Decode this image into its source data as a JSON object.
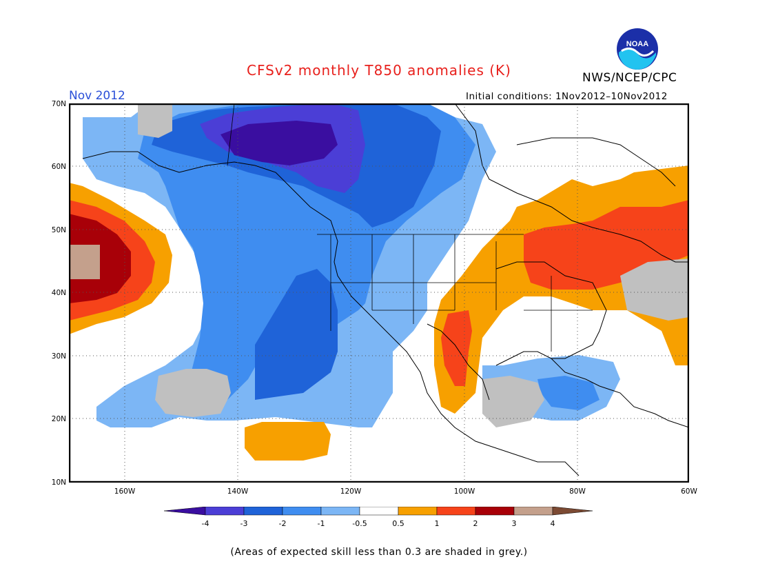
{
  "header": {
    "title": "CFSv2 monthly T850 anomalies (K)",
    "agency": "NWS/NCEP/CPC",
    "logo_text": "NOAA",
    "valid_month": "Nov 2012",
    "initial_conditions": "Initial conditions: 1Nov2012–10Nov2012"
  },
  "map": {
    "lat_labels": [
      "70N",
      "60N",
      "50N",
      "40N",
      "30N",
      "20N",
      "10N"
    ],
    "lon_labels": [
      "160W",
      "140W",
      "120W",
      "100W",
      "80W",
      "60W"
    ],
    "lat_range": [
      10,
      70
    ],
    "lon_range": [
      -171,
      -60
    ]
  },
  "legend": {
    "tick_labels": [
      "-4",
      "-3",
      "-2",
      "-1",
      "-0.5",
      "0.5",
      "1",
      "2",
      "3",
      "4"
    ],
    "colors": [
      "#3a0ea0",
      "#4b3ed6",
      "#1f63d8",
      "#3f8df0",
      "#7cb6f5",
      "#ffffff",
      "#f7a000",
      "#f6431a",
      "#a80008",
      "#c4a08c",
      "#7c4a33"
    ]
  },
  "colors": {
    "grey": "#c0c0c0",
    "title": "#e8201c",
    "month": "#2a4fd8"
  },
  "footnote": "(Areas of expected skill less than 0.3 are shaded in grey.)"
}
